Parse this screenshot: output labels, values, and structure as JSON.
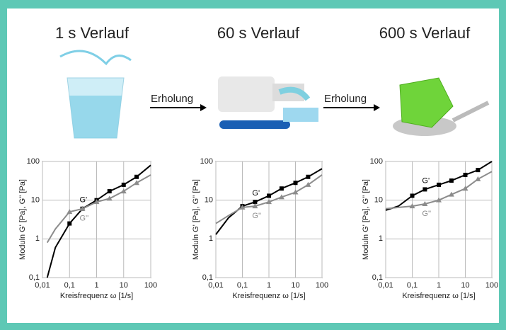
{
  "arrows": [
    {
      "label": "Erholung"
    },
    {
      "label": "Erholung"
    }
  ],
  "chart_data": [
    {
      "type": "line",
      "title": "1 s Verlauf",
      "x_label": "Kreisfrequenz ω [1/s]",
      "y_label": "Moduln G' [Pa], G'' [Pa]",
      "log_x": true,
      "log_y": true,
      "grid": true,
      "xlim": [
        0.01,
        100
      ],
      "ylim": [
        0.1,
        100
      ],
      "xticks": [
        {
          "value": 0.01,
          "label": "0,01"
        },
        {
          "value": 0.1,
          "label": "0,1"
        },
        1,
        10,
        100
      ],
      "yticks": [
        {
          "value": 0.1,
          "label": "0,1"
        },
        1,
        10,
        100
      ],
      "x": [
        0.015,
        0.03,
        0.1,
        0.3,
        1,
        3,
        10,
        30,
        100
      ],
      "series": [
        {
          "name": "G'",
          "color": "#000000",
          "values": [
            0.1,
            0.6,
            2.5,
            6,
            10,
            17,
            25,
            40,
            80
          ]
        },
        {
          "name": "G''",
          "color": "#8c8c8c",
          "values": [
            0.8,
            1.8,
            5,
            6,
            9,
            11,
            17,
            28,
            45
          ]
        }
      ]
    },
    {
      "type": "line",
      "title": "60 s Verlauf",
      "x_label": "Kreisfrequenz ω [1/s]",
      "y_label": "Moduln G' [Pa], G'' [Pa]",
      "log_x": true,
      "log_y": true,
      "grid": true,
      "xlim": [
        0.01,
        100
      ],
      "ylim": [
        0.1,
        100
      ],
      "xticks": [
        {
          "value": 0.01,
          "label": "0,01"
        },
        {
          "value": 0.1,
          "label": "0,1"
        },
        1,
        10,
        100
      ],
      "yticks": [
        {
          "value": 0.1,
          "label": "0,1"
        },
        1,
        10,
        100
      ],
      "x": [
        0.01,
        0.03,
        0.1,
        0.3,
        1,
        3,
        10,
        30,
        100
      ],
      "series": [
        {
          "name": "G'",
          "color": "#000000",
          "values": [
            1.3,
            3.5,
            7,
            9,
            13,
            20,
            28,
            40,
            65
          ]
        },
        {
          "name": "G''",
          "color": "#8c8c8c",
          "values": [
            2.5,
            4,
            6.5,
            7,
            9,
            12,
            16,
            25,
            45
          ]
        }
      ]
    },
    {
      "type": "line",
      "title": "600 s Verlauf",
      "x_label": "Kreisfrequenz ω [1/s]",
      "y_label": "Moduln G' [Pa], G'' [Pa]",
      "log_x": true,
      "log_y": true,
      "grid": true,
      "xlim": [
        0.01,
        100
      ],
      "ylim": [
        0.1,
        100
      ],
      "xticks": [
        {
          "value": 0.01,
          "label": "0,01"
        },
        {
          "value": 0.1,
          "label": "0,1"
        },
        1,
        10,
        100
      ],
      "yticks": [
        {
          "value": 0.1,
          "label": "0,1"
        },
        1,
        10,
        100
      ],
      "x": [
        0.01,
        0.03,
        0.1,
        0.3,
        1,
        3,
        10,
        30,
        100
      ],
      "series": [
        {
          "name": "G'",
          "color": "#000000",
          "values": [
            5.5,
            7,
            13,
            19,
            25,
            32,
            45,
            60,
            100
          ]
        },
        {
          "name": "G''",
          "color": "#8c8c8c",
          "values": [
            6,
            6.5,
            7,
            8,
            10,
            14,
            20,
            35,
            55
          ]
        }
      ]
    }
  ]
}
